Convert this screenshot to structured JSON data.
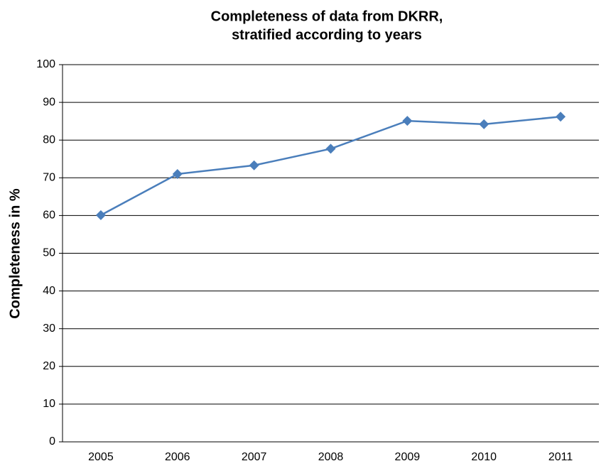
{
  "chart_data": {
    "type": "line",
    "title": [
      "Completeness of data from DKRR,",
      "stratified according to years"
    ],
    "y_label": "Completeness in %",
    "categories": [
      "2005",
      "2006",
      "2007",
      "2008",
      "2009",
      "2010",
      "2011"
    ],
    "series": [
      {
        "name": "Completeness",
        "color": "#4a7ebb",
        "values": [
          60.1,
          71.0,
          73.3,
          77.7,
          85.1,
          84.2,
          86.2
        ]
      }
    ],
    "ylim": [
      0,
      100
    ],
    "yticks": [
      0,
      10,
      20,
      30,
      40,
      50,
      60,
      70,
      80,
      90,
      100
    ],
    "grid": true,
    "marker": "diamond"
  }
}
